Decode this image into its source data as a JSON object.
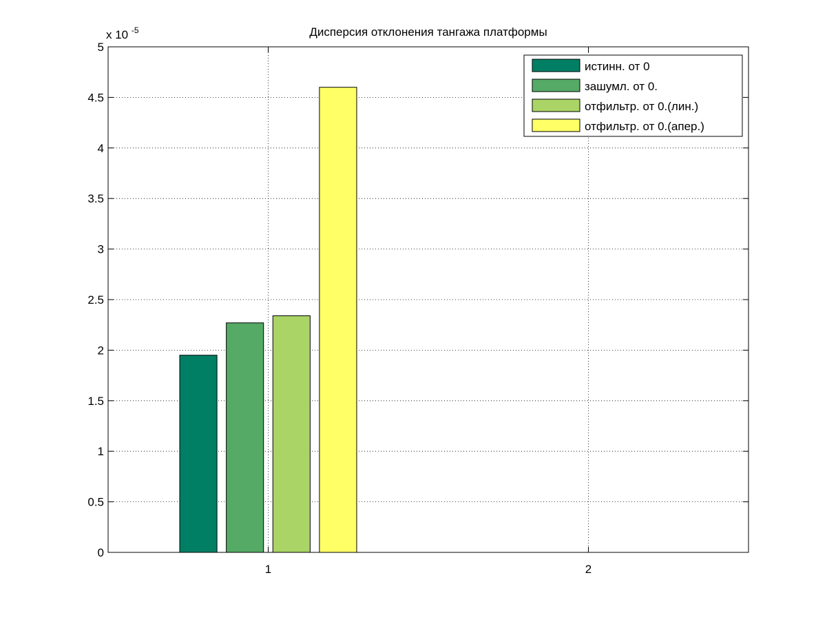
{
  "chart_data": {
    "type": "bar",
    "title": "Дисперсия отклонения тангажа платформы",
    "xlabel": "",
    "ylabel": "",
    "y_exponent_label": "x 10",
    "y_exponent_power": "-5",
    "categories": [
      "1",
      "2"
    ],
    "xlim": [
      0.5,
      2.5
    ],
    "ylim": [
      0,
      5
    ],
    "yticks": [
      "0",
      "0.5",
      "1",
      "1.5",
      "2",
      "2.5",
      "3",
      "3.5",
      "4",
      "4.5",
      "5"
    ],
    "grid": true,
    "legend_position": "top-right",
    "series": [
      {
        "name": "истинн. от 0",
        "color": "#007f65",
        "values": [
          1.95,
          0
        ]
      },
      {
        "name": "зашумл. от 0.",
        "color": "#55aa66",
        "values": [
          2.27,
          0
        ]
      },
      {
        "name": "отфильтр. от 0.(лин.)",
        "color": "#aad466",
        "values": [
          2.34,
          0
        ]
      },
      {
        "name": "отфильтр. от 0.(апер.)",
        "color": "#ffff66",
        "values": [
          4.6,
          0
        ]
      }
    ]
  }
}
